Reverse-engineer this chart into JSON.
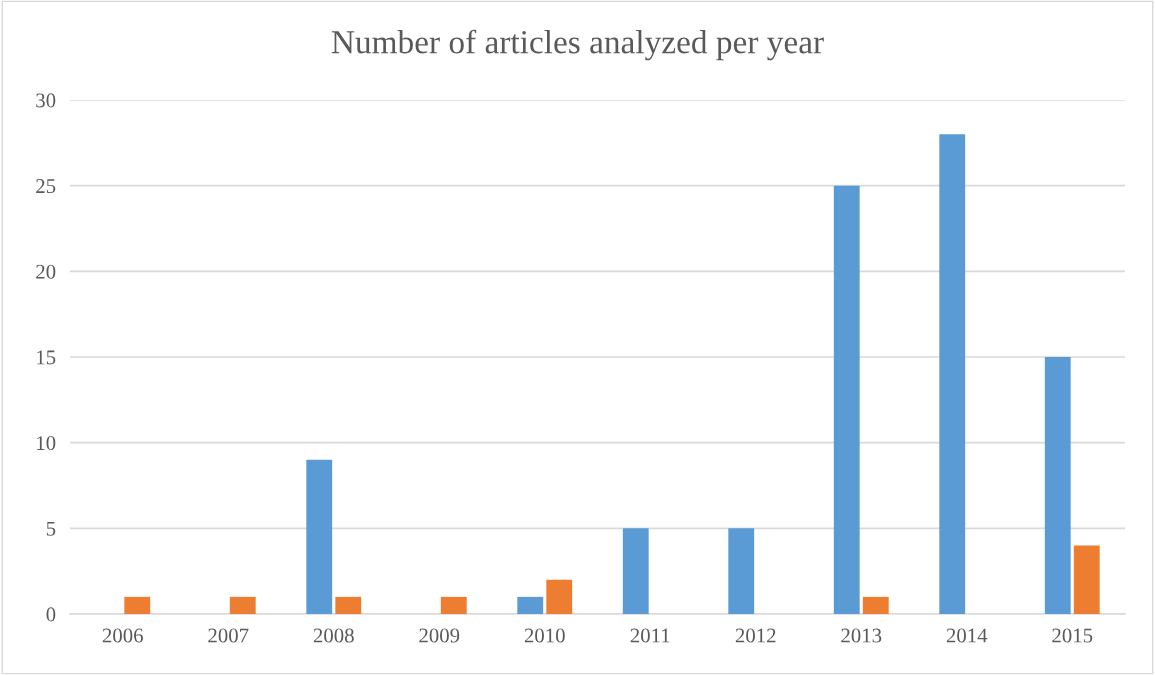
{
  "chart_data": {
    "type": "bar",
    "title": "Number of articles analyzed per year",
    "categories": [
      "2006",
      "2007",
      "2008",
      "2009",
      "2010",
      "2011",
      "2012",
      "2013",
      "2014",
      "2015"
    ],
    "series": [
      {
        "color": "#5b9bd5",
        "values": [
          null,
          null,
          9,
          null,
          1,
          5,
          5,
          25,
          28,
          15
        ]
      },
      {
        "color": "#ed7d31",
        "values": [
          1,
          1,
          1,
          1,
          2,
          null,
          null,
          1,
          null,
          4
        ]
      }
    ],
    "ylim": [
      0,
      30
    ],
    "yticks": [
      0,
      5,
      10,
      15,
      20,
      25,
      30
    ],
    "grid": "y"
  }
}
